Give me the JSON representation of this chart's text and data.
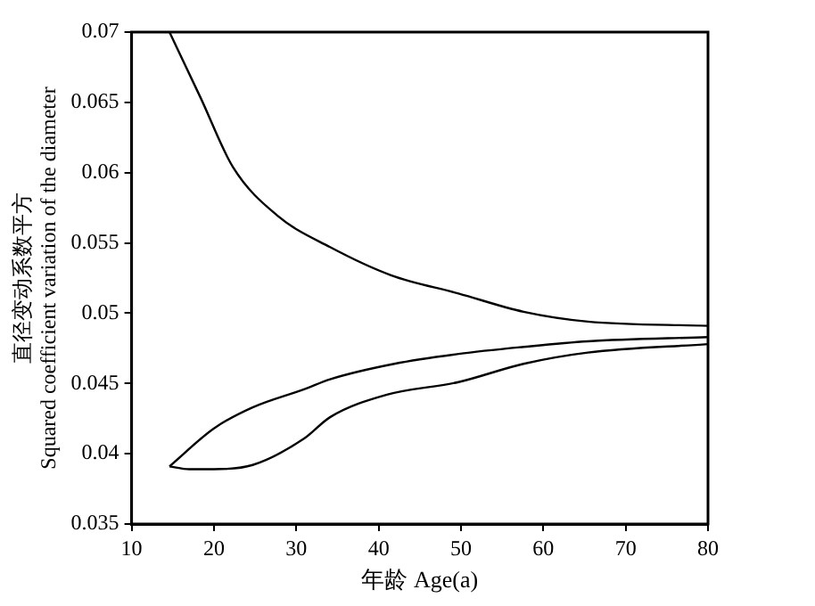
{
  "chart_data": {
    "type": "line",
    "xlabel": "年龄 Age(a)",
    "ylabel": "直径变动系数平方\nSquared coefficient variation of the diameter",
    "xlim": [
      10,
      80
    ],
    "xticks": [
      10,
      20,
      30,
      40,
      50,
      60,
      70,
      80
    ],
    "ylim": [
      0.035,
      0.07
    ],
    "yticks": [
      0.035,
      0.04,
      0.045,
      0.05,
      0.055,
      0.06,
      0.065,
      0.07
    ],
    "grid": false,
    "legend": false,
    "marker": "none",
    "line_style": "solid",
    "series": [
      {
        "color": "#000000",
        "x": [
          14.6,
          18.4,
          22.3,
          27.8,
          34.1,
          41.5,
          49.7,
          57.6,
          65.4,
          80
        ],
        "values": [
          0.07,
          0.0653,
          0.0604,
          0.0569,
          0.0547,
          0.0527,
          0.0514,
          0.0501,
          0.0494,
          0.0491
        ]
      },
      {
        "color": "#000000",
        "x": [
          14.6,
          20,
          24.7,
          31,
          34.1,
          41.9,
          49.7,
          57.6,
          65.4,
          80
        ],
        "values": [
          0.0391,
          0.0418,
          0.0433,
          0.0446,
          0.0453,
          0.0464,
          0.0471,
          0.0476,
          0.048,
          0.0483
        ]
      },
      {
        "color": "#000000",
        "x": [
          14.6,
          17,
          20,
          24.7,
          31,
          34.1,
          41,
          49.7,
          57.6,
          65.4,
          80
        ],
        "values": [
          0.0391,
          0.0389,
          0.0389,
          0.0392,
          0.0411,
          0.0426,
          0.0442,
          0.0451,
          0.0464,
          0.0472,
          0.0478
        ]
      }
    ]
  }
}
